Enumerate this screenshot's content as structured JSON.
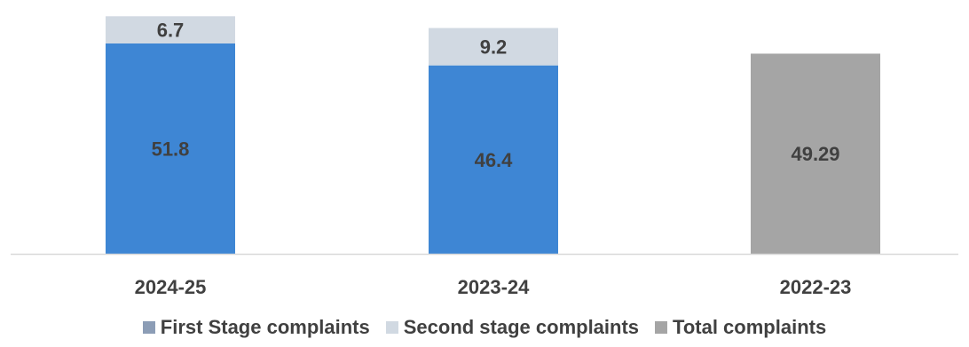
{
  "chart_data": {
    "type": "bar",
    "stacked": true,
    "categories": [
      "2024-25",
      "2023-24",
      "2022-23"
    ],
    "series": [
      {
        "name": "First Stage complaints",
        "color": "#3e86d4",
        "values": [
          51.8,
          46.4,
          null
        ]
      },
      {
        "name": "Second stage complaints",
        "color": "#d1d9e2",
        "values": [
          6.7,
          9.2,
          null
        ]
      },
      {
        "name": "Total complaints",
        "color": "#a5a5a5",
        "values": [
          null,
          null,
          49.29
        ]
      }
    ],
    "data_labels": [
      [
        "51.8",
        "46.4",
        ""
      ],
      [
        "6.7",
        "9.2",
        ""
      ],
      [
        "",
        "",
        "49.29"
      ]
    ],
    "legend_markers": [
      "#8c9db6",
      "#d1d9e2",
      "#a5a5a5"
    ],
    "ylim": [
      0,
      62.5
    ],
    "grid": false,
    "legend_position": "bottom"
  }
}
